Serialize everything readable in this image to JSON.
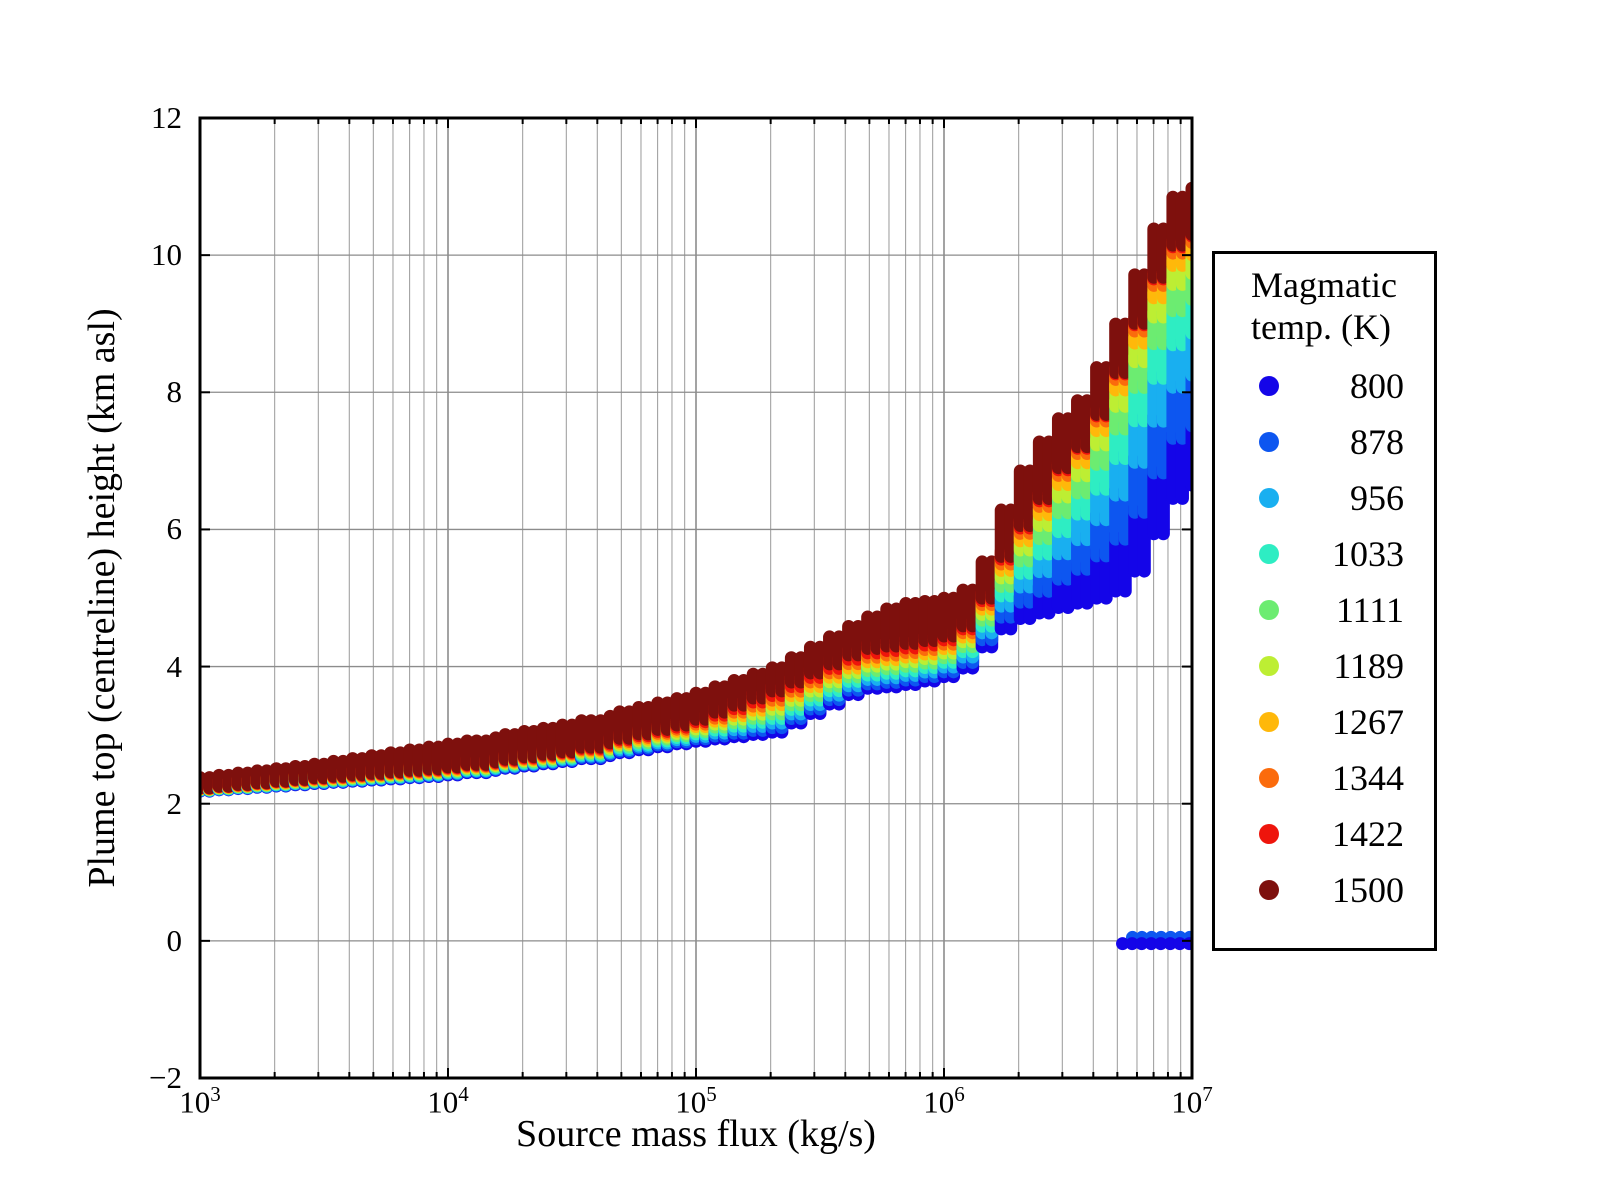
{
  "figure": {
    "background": "#ffffff"
  },
  "axes": {
    "x": {
      "label": "Source mass flux (kg/s)",
      "scale": "log",
      "min_exponent": 3,
      "max_exponent": 7,
      "tick_exponents": [
        3,
        4,
        5,
        6,
        7
      ],
      "base": "10"
    },
    "y": {
      "label": "Plume top (centreline) height (km asl)",
      "min": -2,
      "max": 12,
      "tick_step": 2,
      "tick_labels": [
        "−2",
        "0",
        "2",
        "4",
        "6",
        "8",
        "10",
        "12"
      ],
      "grid_values": [
        0,
        2,
        4,
        6,
        8,
        10
      ]
    }
  },
  "legend": {
    "title_line1": "Magmatic",
    "title_line2": "temp. (K)",
    "entries": [
      {
        "label": "800",
        "color": "#1405E8"
      },
      {
        "label": "878",
        "color": "#0D56F0"
      },
      {
        "label": "956",
        "color": "#19AFF0"
      },
      {
        "label": "1033",
        "color": "#2EEDC3"
      },
      {
        "label": "1111",
        "color": "#6CEC71"
      },
      {
        "label": "1189",
        "color": "#BDEE33"
      },
      {
        "label": "1267",
        "color": "#FFB80A"
      },
      {
        "label": "1344",
        "color": "#FB6B0C"
      },
      {
        "label": "1422",
        "color": "#EE150C"
      },
      {
        "label": "1500",
        "color": "#7E100D"
      }
    ]
  },
  "chart_data": {
    "type": "scatter",
    "title": "",
    "xlabel": "Source mass flux (kg/s)",
    "ylabel": "Plume top (centreline) height (km asl)",
    "xlim_log10": [
      3,
      7
    ],
    "ylim": [
      -2,
      12
    ],
    "grid": true,
    "legend_position": "right",
    "series_temperatures_K": [
      800,
      878,
      956,
      1033,
      1111,
      1189,
      1267,
      1344,
      1422,
      1500
    ],
    "series_colors": [
      "#1405E8",
      "#0D56F0",
      "#19AFF0",
      "#2EEDC3",
      "#6CEC71",
      "#BDEE33",
      "#FFB80A",
      "#FB6B0C",
      "#EE150C",
      "#7E100D"
    ],
    "band_envelope_anchors": {
      "description": "Envelope of the 10-temperature scatter band vs log10(mass flux): bottom = lower edge of 800 K points, darkred_lower = boundary below 1500 K points, top = upper edge of 1500 K points (km asl).",
      "log10_flux": [
        3.0,
        3.5,
        4.0,
        4.5,
        5.0,
        5.35,
        5.7,
        5.85,
        6.0,
        6.1,
        6.18,
        6.3,
        6.4,
        6.48,
        6.6,
        6.7,
        6.78,
        6.85,
        6.9,
        6.95,
        7.0
      ],
      "bottom": [
        2.08,
        2.2,
        2.31,
        2.52,
        2.8,
        2.95,
        3.58,
        3.62,
        3.72,
        3.82,
        4.15,
        4.56,
        4.66,
        4.75,
        4.85,
        4.95,
        5.1,
        5.6,
        5.95,
        6.3,
        6.55
      ],
      "darkred_lower": [
        2.22,
        2.38,
        2.52,
        2.76,
        3.18,
        3.65,
        4.25,
        4.32,
        4.4,
        4.52,
        4.9,
        5.85,
        6.3,
        6.82,
        7.3,
        8.0,
        8.75,
        9.4,
        9.8,
        10.1,
        10.3
      ],
      "top": [
        2.46,
        2.67,
        2.94,
        3.24,
        3.66,
        4.08,
        4.77,
        5.0,
        5.06,
        5.14,
        5.5,
        6.68,
        7.26,
        7.64,
        8.05,
        8.8,
        9.55,
        10.2,
        10.6,
        10.9,
        11.07
      ]
    },
    "collapse_cluster": {
      "description": "Column-collapse points near 0 km asl at high flux (coolest magmas only).",
      "series": [
        {
          "temperature_K": 800,
          "color": "#1405E8",
          "y_km": -0.04,
          "log10_flux_range": [
            6.72,
            7.0
          ]
        },
        {
          "temperature_K": 878,
          "color": "#0D56F0",
          "y_km": 0.05,
          "log10_flux_range": [
            6.76,
            7.0
          ]
        }
      ]
    },
    "sampling": {
      "columns_per_decade": 26,
      "value_steps_per_decade": 13,
      "marker_radius_px": 6.5
    },
    "band_spread": {
      "warm_compression_start_log10": 6.0,
      "warm_compression_full_log10": 6.7,
      "max_exponent_boost": 1.3
    }
  }
}
